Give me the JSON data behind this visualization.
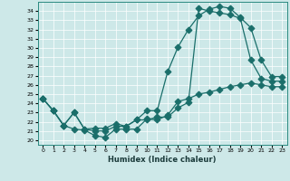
{
  "xlabel": "Humidex (Indice chaleur)",
  "bg_color": "#cde8e8",
  "grid_color": "#b0d8d8",
  "line_color": "#1a6e6a",
  "xlim": [
    -0.5,
    23.5
  ],
  "ylim": [
    19.5,
    35.0
  ],
  "xticks": [
    0,
    1,
    2,
    3,
    4,
    5,
    6,
    7,
    8,
    9,
    10,
    11,
    12,
    13,
    14,
    15,
    16,
    17,
    18,
    19,
    20,
    21,
    22,
    23
  ],
  "yticks": [
    20,
    21,
    22,
    23,
    24,
    25,
    26,
    27,
    28,
    29,
    30,
    31,
    32,
    33,
    34
  ],
  "line1_x": [
    0,
    1,
    2,
    3,
    4,
    5,
    6,
    7,
    8,
    9,
    10,
    11,
    12,
    13,
    14,
    15,
    16,
    17,
    18,
    19,
    20,
    21,
    22,
    23
  ],
  "line1_y": [
    24.5,
    23.2,
    21.6,
    21.2,
    21.1,
    20.5,
    20.3,
    21.2,
    21.2,
    21.2,
    22.3,
    22.2,
    22.7,
    24.2,
    24.5,
    25.0,
    25.2,
    25.5,
    25.8,
    26.0,
    26.2,
    26.0,
    25.8,
    25.8
  ],
  "line2_x": [
    0,
    1,
    2,
    3,
    4,
    5,
    6,
    7,
    8,
    9,
    10,
    11,
    12,
    13,
    14,
    15,
    16,
    17,
    18,
    19,
    20,
    21,
    22,
    23
  ],
  "line2_y": [
    24.5,
    23.2,
    21.6,
    23.0,
    21.2,
    21.3,
    21.3,
    21.8,
    21.5,
    22.2,
    23.2,
    23.2,
    27.4,
    30.1,
    32.0,
    33.5,
    34.2,
    34.5,
    34.3,
    33.3,
    32.2,
    28.7,
    26.9,
    26.9
  ],
  "line3_x": [
    0,
    1,
    2,
    3,
    4,
    5,
    6,
    7,
    8,
    9,
    10,
    11,
    12,
    13,
    14,
    15,
    16,
    17,
    18,
    19,
    20,
    21,
    22,
    23
  ],
  "line3_y": [
    24.5,
    23.2,
    21.6,
    23.0,
    21.2,
    21.0,
    21.0,
    21.5,
    21.5,
    22.2,
    22.2,
    22.5,
    22.5,
    23.5,
    24.1,
    34.3,
    34.0,
    33.8,
    33.6,
    33.2,
    28.7,
    26.7,
    26.4,
    26.4
  ]
}
